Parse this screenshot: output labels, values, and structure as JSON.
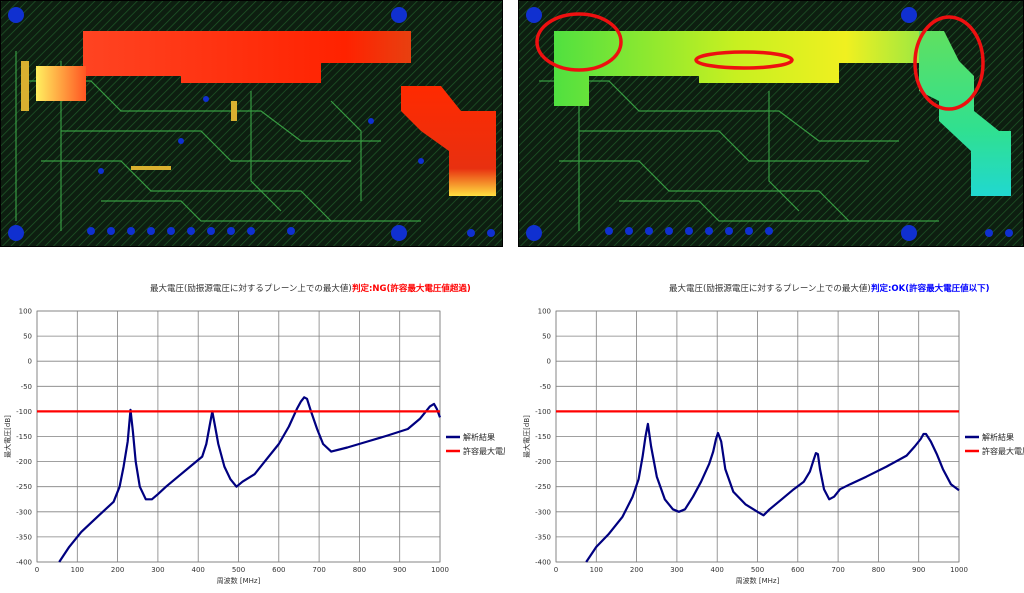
{
  "pcb_images": [
    {
      "state": "before",
      "annotation": "none"
    },
    {
      "state": "after",
      "annotation": "red ellipses marking modified regions"
    }
  ],
  "chart_data": [
    {
      "type": "line",
      "title": "最大電圧(励振源電圧に対するプレーン上での最大値)",
      "verdict": "判定:NG(許容最大電圧値超過)",
      "verdict_color": "#ff0000",
      "xlabel": "周波数 [MHz]",
      "ylabel": "最大電圧[dB]",
      "xlim": [
        0,
        1000
      ],
      "ylim": [
        -400,
        100
      ],
      "x_ticks": [
        "0",
        "100",
        "200",
        "300",
        "400",
        "500",
        "600",
        "700",
        "800",
        "900",
        "1000"
      ],
      "y_ticks": [
        "100",
        "50",
        "0",
        "-50",
        "-100",
        "-150",
        "-200",
        "-250",
        "-300",
        "-350",
        "-400"
      ],
      "grid": true,
      "legend_position": "right",
      "series": [
        {
          "name": "解析結果",
          "color": "#000080",
          "x": [
            55,
            80,
            110,
            150,
            190,
            205,
            215,
            225,
            232,
            238,
            245,
            255,
            270,
            285,
            300,
            320,
            350,
            380,
            410,
            420,
            428,
            435,
            442,
            450,
            465,
            480,
            495,
            510,
            540,
            570,
            600,
            625,
            645,
            655,
            663,
            670,
            680,
            695,
            710,
            730,
            770,
            820,
            870,
            920,
            950,
            965,
            975,
            985,
            992,
            1000
          ],
          "y": [
            -400,
            -370,
            -340,
            -310,
            -280,
            -250,
            -210,
            -160,
            -97,
            -140,
            -200,
            -250,
            -275,
            -275,
            -265,
            -250,
            -230,
            -210,
            -190,
            -165,
            -130,
            -100,
            -130,
            -165,
            -210,
            -235,
            -250,
            -240,
            -225,
            -195,
            -165,
            -130,
            -95,
            -80,
            -72,
            -75,
            -100,
            -135,
            -165,
            -180,
            -172,
            -160,
            -148,
            -135,
            -115,
            -100,
            -90,
            -85,
            -95,
            -112
          ]
        },
        {
          "name": "許容最大電圧値",
          "color": "#ff0000",
          "x": [
            0,
            1000
          ],
          "y": [
            -100,
            -100
          ]
        }
      ]
    },
    {
      "type": "line",
      "title": "最大電圧(励振源電圧に対するプレーン上での最大値)",
      "verdict": "判定:OK(許容最大電圧値以下)",
      "verdict_color": "#0000ff",
      "xlabel": "周波数 [MHz]",
      "ylabel": "最大電圧[dB]",
      "xlim": [
        0,
        1000
      ],
      "ylim": [
        -400,
        100
      ],
      "x_ticks": [
        "0",
        "100",
        "200",
        "300",
        "400",
        "500",
        "600",
        "700",
        "800",
        "900",
        "1000"
      ],
      "y_ticks": [
        "100",
        "50",
        "0",
        "-50",
        "-100",
        "-150",
        "-200",
        "-250",
        "-300",
        "-350",
        "-400"
      ],
      "grid": true,
      "legend_position": "right",
      "series": [
        {
          "name": "解析結果",
          "color": "#000080",
          "x": [
            75,
            100,
            130,
            165,
            190,
            205,
            215,
            222,
            228,
            236,
            250,
            270,
            290,
            305,
            320,
            340,
            360,
            380,
            390,
            397,
            402,
            410,
            420,
            440,
            470,
            500,
            515,
            530,
            560,
            590,
            615,
            630,
            640,
            645,
            650,
            655,
            665,
            678,
            690,
            705,
            730,
            770,
            820,
            870,
            890,
            905,
            912,
            918,
            930,
            945,
            960,
            980,
            1000
          ],
          "y": [
            -400,
            -370,
            -345,
            -310,
            -270,
            -235,
            -190,
            -150,
            -125,
            -170,
            -230,
            -275,
            -295,
            -300,
            -295,
            -270,
            -240,
            -205,
            -180,
            -155,
            -143,
            -160,
            -215,
            -260,
            -285,
            -300,
            -307,
            -295,
            -275,
            -255,
            -240,
            -220,
            -195,
            -183,
            -185,
            -215,
            -255,
            -275,
            -270,
            -255,
            -245,
            -230,
            -210,
            -188,
            -170,
            -155,
            -145,
            -145,
            -160,
            -185,
            -215,
            -245,
            -257
          ]
        },
        {
          "name": "許容最大電圧値",
          "color": "#ff0000",
          "x": [
            0,
            1000
          ],
          "y": [
            -100,
            -100
          ]
        }
      ]
    }
  ]
}
